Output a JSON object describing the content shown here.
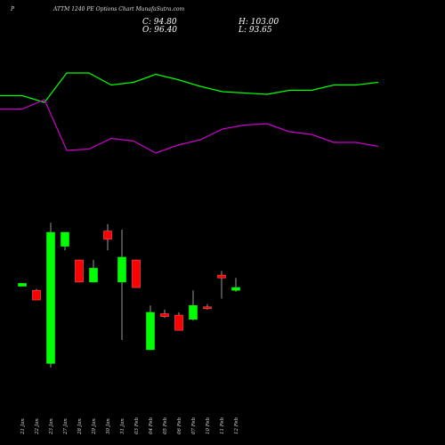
{
  "header": {
    "symbol": "P",
    "title": "ATTM 1240  PE Options  Chart MunafaSutra.com",
    "close_label": "C: 94.80",
    "high_label": "H: 103.00",
    "open_label": "O: 96.40",
    "low_label": "L: 93.65"
  },
  "colors": {
    "background": "#000000",
    "up": "#00ff00",
    "down": "#ff0000",
    "line_upper": "#00ff00",
    "line_lower": "#cc00cc",
    "wick": "#999999"
  },
  "chart_data": {
    "type": "candlestick",
    "x_labels": [
      "21 Jan",
      "22 Jan",
      "23 Jan",
      "27 Jan",
      "28 Jan",
      "29 Jan",
      "30 Jan",
      "31 Jan",
      "03 Feb",
      "04 Feb",
      "05 Feb",
      "06 Feb",
      "07 Feb",
      "10 Feb",
      "11 Feb",
      "12 Feb"
    ],
    "candles": [
      {
        "date": "21 Jan",
        "open": 0.59,
        "close": 0.61,
        "high": 0.61,
        "low": 0.59,
        "dir": "up"
      },
      {
        "date": "22 Jan",
        "open": 0.56,
        "close": 0.49,
        "high": 0.57,
        "low": 0.49,
        "dir": "down"
      },
      {
        "date": "23 Jan",
        "open": 0.03,
        "close": 0.98,
        "high": 1.05,
        "low": 0.0,
        "dir": "up"
      },
      {
        "date": "27 Jan",
        "open": 0.88,
        "close": 0.98,
        "high": 0.98,
        "low": 0.85,
        "dir": "up"
      },
      {
        "date": "28 Jan",
        "open": 0.78,
        "close": 0.62,
        "high": 0.78,
        "low": 0.62,
        "dir": "down"
      },
      {
        "date": "29 Jan",
        "open": 0.62,
        "close": 0.72,
        "high": 0.78,
        "low": 0.62,
        "dir": "up"
      },
      {
        "date": "30 Jan",
        "open": 0.99,
        "close": 0.93,
        "high": 1.04,
        "low": 0.85,
        "dir": "down"
      },
      {
        "date": "31 Jan",
        "open": 0.62,
        "close": 0.8,
        "high": 1.0,
        "low": 0.2,
        "dir": "up"
      },
      {
        "date": "03 Feb",
        "open": 0.78,
        "close": 0.58,
        "high": 0.78,
        "low": 0.58,
        "dir": "down"
      },
      {
        "date": "04 Feb",
        "open": 0.13,
        "close": 0.4,
        "high": 0.45,
        "low": 0.13,
        "dir": "up"
      },
      {
        "date": "05 Feb",
        "open": 0.39,
        "close": 0.37,
        "high": 0.42,
        "low": 0.36,
        "dir": "down"
      },
      {
        "date": "06 Feb",
        "open": 0.38,
        "close": 0.27,
        "high": 0.4,
        "low": 0.27,
        "dir": "down"
      },
      {
        "date": "07 Feb",
        "open": 0.35,
        "close": 0.45,
        "high": 0.56,
        "low": 0.34,
        "dir": "up"
      },
      {
        "date": "10 Feb",
        "open": 0.44,
        "close": 0.43,
        "high": 0.46,
        "low": 0.42,
        "dir": "down"
      },
      {
        "date": "11 Feb",
        "open": 0.67,
        "close": 0.65,
        "high": 0.7,
        "low": 0.5,
        "dir": "down"
      },
      {
        "date": "12 Feb",
        "open": 0.56,
        "close": 0.58,
        "high": 0.65,
        "low": 0.55,
        "dir": "up"
      }
    ],
    "upper_line": [
      0.83,
      0.83,
      0.78,
      1.0,
      1.0,
      0.91,
      0.93,
      0.99,
      0.95,
      0.9,
      0.86,
      0.85,
      0.84,
      0.87,
      0.87,
      0.91,
      0.91,
      0.93
    ],
    "lower_line": [
      0.73,
      0.73,
      0.8,
      0.42,
      0.43,
      0.51,
      0.49,
      0.4,
      0.46,
      0.5,
      0.58,
      0.61,
      0.62,
      0.56,
      0.54,
      0.48,
      0.48,
      0.45
    ],
    "line_scale": [
      0,
      1
    ]
  }
}
